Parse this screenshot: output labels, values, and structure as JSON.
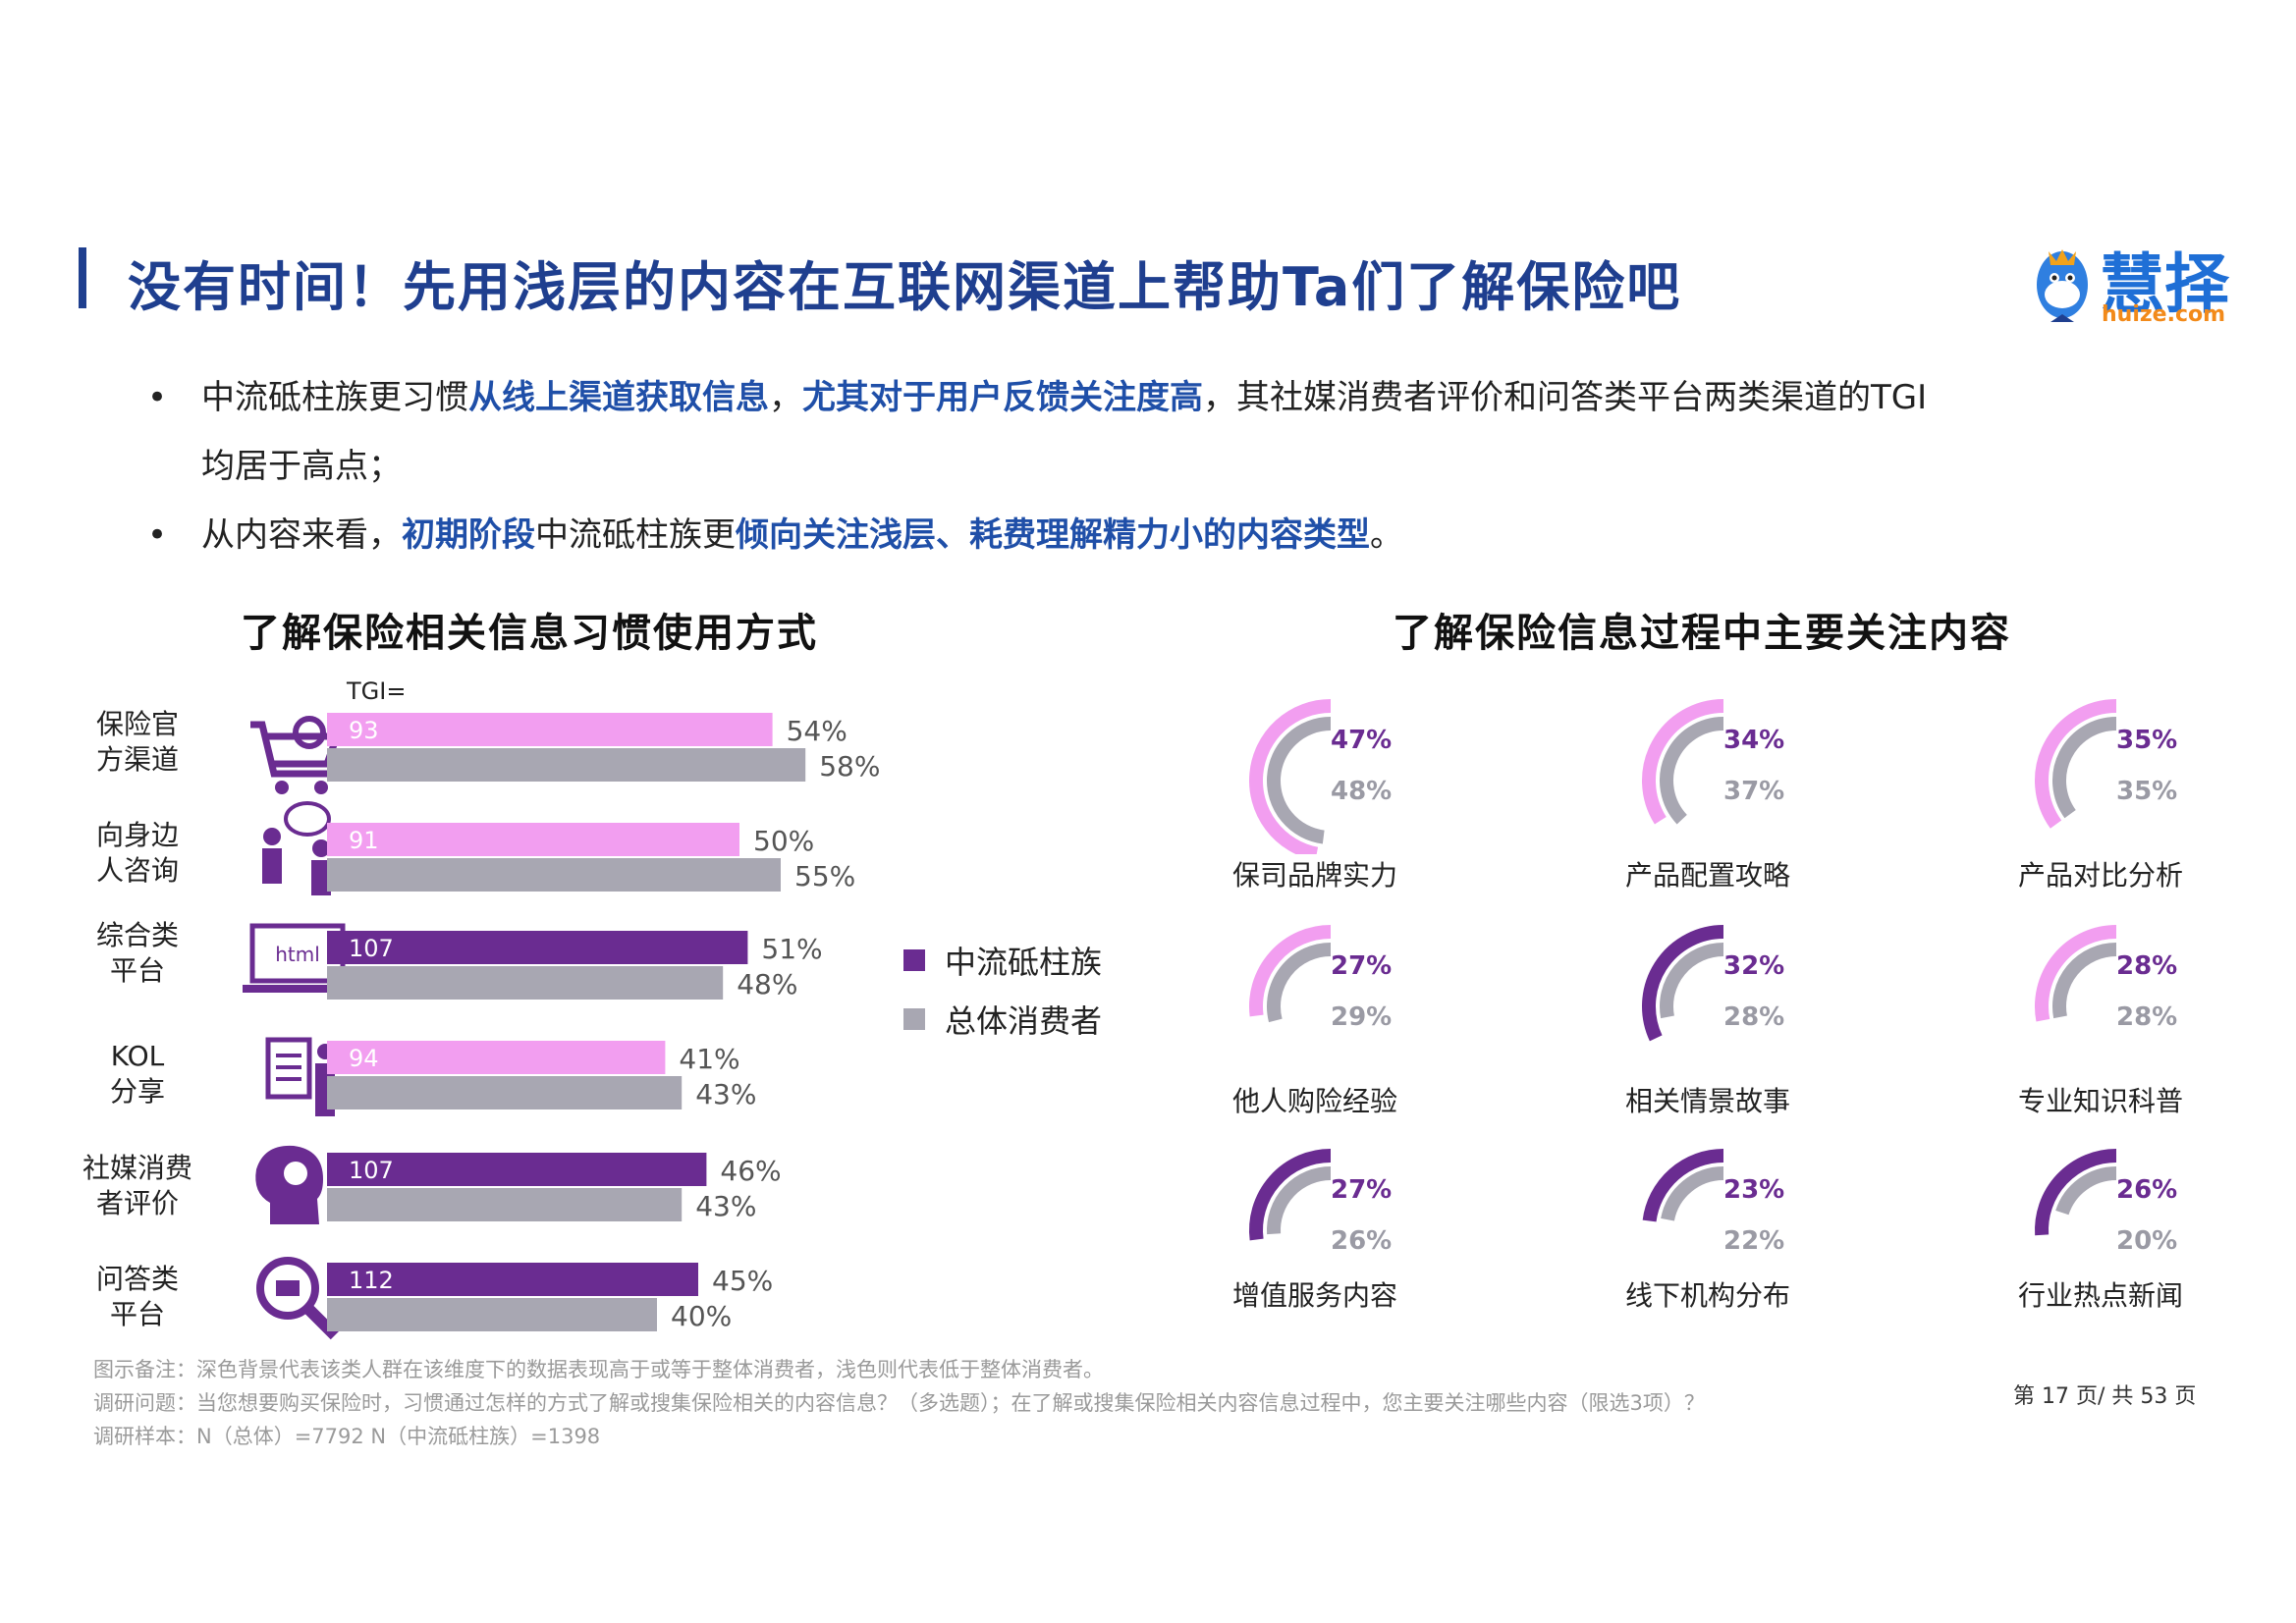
{
  "title": "没有时间！先用浅层的内容在互联网渠道上帮助Ta们了解保险吧",
  "logo": {
    "name": "慧择",
    "domain": "huize.com"
  },
  "bullets": [
    {
      "parts": [
        {
          "text": "中流砥柱族更习惯",
          "style": "normal"
        },
        {
          "text": "从线上渠道获取信息",
          "style": "blue"
        },
        {
          "text": "，",
          "style": "normal"
        },
        {
          "text": "尤其对于用户反馈关注度高",
          "style": "blue"
        },
        {
          "text": "，其社媒消费者评价和问答类平台两类渠道的TGI",
          "style": "normal"
        }
      ],
      "continuation": "均居于高点；"
    },
    {
      "parts": [
        {
          "text": "从内容来看，",
          "style": "normal"
        },
        {
          "text": "初期阶段",
          "style": "blue"
        },
        {
          "text": "中流砥柱族更",
          "style": "normal"
        },
        {
          "text": "倾向关注浅层、耗费理解精力小的内容类型",
          "style": "blue"
        },
        {
          "text": "。",
          "style": "normal"
        }
      ]
    }
  ],
  "left_title": "了解保险相关信息习惯使用方式",
  "right_title": "了解保险信息过程中主要关注内容",
  "tgi_label": "TGI=",
  "legend": [
    {
      "label": "中流砥柱族",
      "color": "#6a2c91"
    },
    {
      "label": "总体消费者",
      "color": "#a8a7b2"
    }
  ],
  "colors": {
    "dark_purple": "#6a2c91",
    "light_pink": "#f29ef0",
    "gray": "#a8a7b2",
    "title_blue": "#1f3f8f"
  },
  "icons": [
    "shopping-cart-gear-icon",
    "people-chat-icon",
    "html-laptop-icon",
    "document-person-icon",
    "head-lightbulb-icon",
    "search-magnifier-icon"
  ],
  "chart_data": [
    {
      "type": "bar",
      "orientation": "horizontal",
      "categories": [
        "保险官方渠道",
        "向身边人咨询",
        "综合类平台",
        "KOL分享",
        "社媒消费者评价",
        "问答类平台"
      ],
      "category_lines": [
        [
          "保险官",
          "方渠道"
        ],
        [
          "向身边",
          "人咨询"
        ],
        [
          "综合类",
          "平台"
        ],
        [
          "KOL",
          "分享"
        ],
        [
          "社媒消费",
          "者评价"
        ],
        [
          "问答类",
          "平台"
        ]
      ],
      "series": [
        {
          "name": "中流砥柱族",
          "values": [
            54,
            50,
            51,
            41,
            46,
            45
          ],
          "labels": [
            "54%",
            "50%",
            "51%",
            "41%",
            "46%",
            "45%"
          ]
        },
        {
          "name": "总体消费者",
          "values": [
            58,
            55,
            48,
            43,
            43,
            40
          ],
          "labels": [
            "58%",
            "55%",
            "48%",
            "43%",
            "43%",
            "40%"
          ]
        }
      ],
      "tgi": [
        "93",
        "91",
        "107",
        "94",
        "107",
        "112"
      ],
      "tgi_high": [
        false,
        false,
        true,
        false,
        true,
        true
      ],
      "xlim": [
        0,
        70
      ]
    },
    {
      "type": "radial-bar",
      "items": [
        {
          "label": "保司品牌实力",
          "core": 47,
          "total": 48,
          "core_label": "47%",
          "total_label": "48%",
          "high": false
        },
        {
          "label": "产品配置攻略",
          "core": 34,
          "total": 37,
          "core_label": "34%",
          "total_label": "37%",
          "high": false
        },
        {
          "label": "产品对比分析",
          "core": 35,
          "total": 35,
          "core_label": "35%",
          "total_label": "35%",
          "high": false
        },
        {
          "label": "他人购险经验",
          "core": 27,
          "total": 29,
          "core_label": "27%",
          "total_label": "29%",
          "high": false
        },
        {
          "label": "相关情景故事",
          "core": 32,
          "total": 28,
          "core_label": "32%",
          "total_label": "28%",
          "high": true
        },
        {
          "label": "专业知识科普",
          "core": 28,
          "total": 28,
          "core_label": "28%",
          "total_label": "28%",
          "high": false
        },
        {
          "label": "增值服务内容",
          "core": 27,
          "total": 26,
          "core_label": "27%",
          "total_label": "26%",
          "high": true
        },
        {
          "label": "线下机构分布",
          "core": 23,
          "total": 22,
          "core_label": "23%",
          "total_label": "22%",
          "high": true
        },
        {
          "label": "行业热点新闻",
          "core": 26,
          "total": 20,
          "core_label": "26%",
          "total_label": "20%",
          "high": true
        }
      ]
    }
  ],
  "footnotes": [
    "图示备注：深色背景代表该类人群在该维度下的数据表现高于或等于整体消费者，浅色则代表低于整体消费者。",
    "调研问题：当您想要购买保险时，习惯通过怎样的方式了解或搜集保险相关的内容信息？（多选题）；在了解或搜集保险相关内容信息过程中，您主要关注哪些内容（限选3项）？",
    "调研样本：N（总体）=7792     N（中流砥柱族）=1398"
  ],
  "pager": "第 17 页/ 共 53 页"
}
